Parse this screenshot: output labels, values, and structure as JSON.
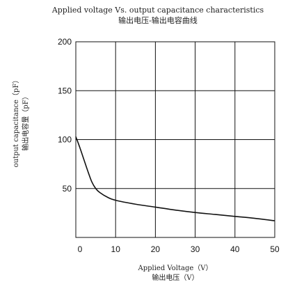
{
  "chart_data": {
    "type": "line",
    "title": "Applied voltage Vs. output capacitance characteristics",
    "subtitle": "输出电压-输出电容曲线",
    "xlabel": "Applied Voltage（V）",
    "xlabel_cn": "输出电压（V）",
    "ylabel": "output capacitance（pF）",
    "ylabel_cn": "输出电容量（pF）",
    "xlim": [
      0,
      50
    ],
    "ylim": [
      0,
      200
    ],
    "grid": true,
    "x_ticks": [
      0,
      10,
      20,
      30,
      40,
      50
    ],
    "y_ticks": [
      50,
      100,
      150,
      200
    ],
    "series": [
      {
        "x": [
          0,
          1,
          2,
          3,
          4,
          5,
          6,
          8,
          10,
          15,
          20,
          25,
          30,
          35,
          40,
          45,
          50
        ],
        "y": [
          103,
          92,
          80,
          68,
          57,
          50,
          46,
          41,
          38,
          34,
          31,
          28,
          25.5,
          23.5,
          21.5,
          19.5,
          17
        ]
      }
    ],
    "colors": {
      "line": "#111111",
      "grid": "#111111"
    }
  }
}
